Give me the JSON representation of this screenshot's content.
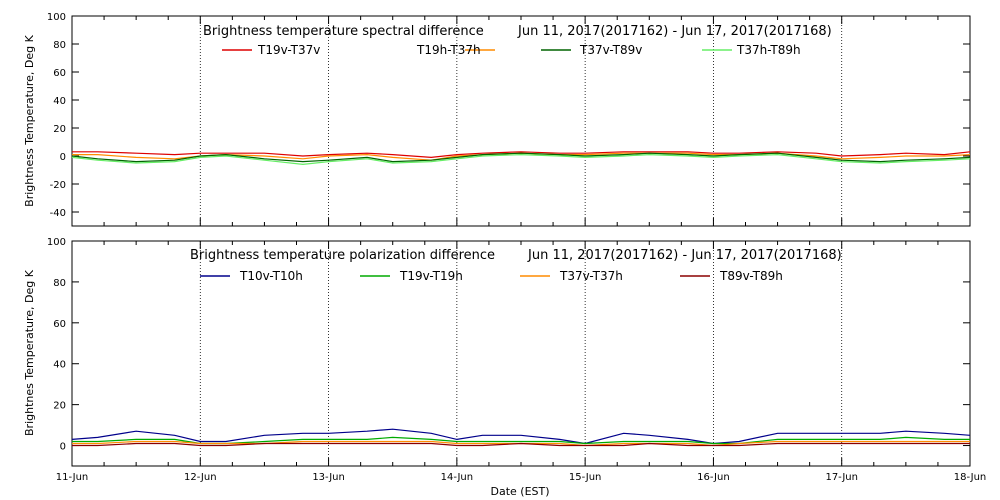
{
  "chart_data": [
    {
      "type": "line",
      "title": "Brightness temperature spectral difference",
      "date_range": "Jun 11, 2017(2017162) - Jun 17, 2017(2017168)",
      "ylabel": "Brightness Temperature, Deg K",
      "xlabel": "",
      "xlim": [
        0,
        7
      ],
      "ylim": [
        -50,
        100
      ],
      "yticks": [
        "-40",
        "-20",
        "0",
        "20",
        "40",
        "60",
        "80",
        "100"
      ],
      "grid": "vertical dotted at day boundaries",
      "legend_position": "top",
      "series": [
        {
          "name": "T19v-T37v",
          "color": "#dd0000",
          "x": [
            0,
            0.2,
            0.5,
            0.8,
            1.0,
            1.2,
            1.5,
            1.8,
            2.0,
            2.3,
            2.5,
            2.8,
            3.0,
            3.2,
            3.5,
            3.8,
            4.0,
            4.3,
            4.5,
            4.8,
            5.0,
            5.2,
            5.5,
            5.8,
            6.0,
            6.3,
            6.5,
            6.8,
            7.0
          ],
          "values": [
            3,
            3,
            2,
            1,
            2,
            2,
            2,
            0,
            1,
            2,
            1,
            -1,
            1,
            2,
            3,
            2,
            2,
            3,
            3,
            3,
            2,
            2,
            3,
            2,
            0,
            1,
            2,
            1,
            3
          ]
        },
        {
          "name": "T19h-T37h",
          "color": "#ff8c00",
          "x": [
            0,
            0.2,
            0.5,
            0.8,
            1.0,
            1.2,
            1.5,
            1.8,
            2.0,
            2.3,
            2.5,
            2.8,
            3.0,
            3.2,
            3.5,
            3.8,
            4.0,
            4.3,
            4.5,
            4.8,
            5.0,
            5.2,
            5.5,
            5.8,
            6.0,
            6.3,
            6.5,
            6.8,
            7.0
          ],
          "values": [
            1,
            1,
            -1,
            -2,
            0,
            1,
            0,
            -2,
            0,
            1,
            -1,
            -3,
            0,
            1,
            2,
            1,
            1,
            2,
            2,
            2,
            1,
            1,
            2,
            0,
            -2,
            -1,
            0,
            0,
            1
          ]
        },
        {
          "name": "T37v-T89v",
          "color": "#006400",
          "x": [
            0,
            0.2,
            0.5,
            0.8,
            1.0,
            1.2,
            1.5,
            1.8,
            2.0,
            2.3,
            2.5,
            2.8,
            3.0,
            3.2,
            3.5,
            3.8,
            4.0,
            4.3,
            4.5,
            4.8,
            5.0,
            5.2,
            5.5,
            5.8,
            6.0,
            6.3,
            6.5,
            6.8,
            7.0
          ],
          "values": [
            0,
            -2,
            -4,
            -3,
            0,
            1,
            -2,
            -4,
            -3,
            -1,
            -4,
            -3,
            -1,
            1,
            2,
            1,
            0,
            1,
            2,
            1,
            0,
            1,
            2,
            -1,
            -3,
            -4,
            -3,
            -2,
            -1
          ]
        },
        {
          "name": "T37h-T89h",
          "color": "#66ee66",
          "x": [
            0,
            0.2,
            0.5,
            0.8,
            1.0,
            1.2,
            1.5,
            1.8,
            2.0,
            2.3,
            2.5,
            2.8,
            3.0,
            3.2,
            3.5,
            3.8,
            4.0,
            4.3,
            4.5,
            4.8,
            5.0,
            5.2,
            5.5,
            5.8,
            6.0,
            6.3,
            6.5,
            6.8,
            7.0
          ],
          "values": [
            -1,
            -3,
            -5,
            -4,
            -1,
            0,
            -3,
            -6,
            -4,
            -2,
            -5,
            -4,
            -2,
            0,
            1,
            0,
            -1,
            0,
            1,
            0,
            -1,
            0,
            1,
            -2,
            -4,
            -5,
            -4,
            -3,
            -2
          ]
        }
      ]
    },
    {
      "type": "line",
      "title": "Brightness temperature polarization difference",
      "date_range": "Jun 11, 2017(2017162) - Jun 17, 2017(2017168)",
      "ylabel": "Brightnes Temperature, Deg K",
      "xlabel": "Date (EST)",
      "xlim": [
        0,
        7
      ],
      "ylim": [
        -10,
        100
      ],
      "yticks": [
        "0",
        "20",
        "40",
        "60",
        "80",
        "100"
      ],
      "categories": [
        "11-Jun",
        "12-Jun",
        "13-Jun",
        "14-Jun",
        "15-Jun",
        "16-Jun",
        "17-Jun",
        "18-Jun"
      ],
      "grid": "vertical dotted at day boundaries",
      "legend_position": "top",
      "series": [
        {
          "name": "T10v-T10h",
          "color": "#00008b",
          "x": [
            0,
            0.2,
            0.5,
            0.8,
            1.0,
            1.2,
            1.5,
            1.8,
            2.0,
            2.3,
            2.5,
            2.8,
            3.0,
            3.2,
            3.5,
            3.8,
            4.0,
            4.3,
            4.5,
            4.8,
            5.0,
            5.2,
            5.5,
            5.8,
            6.0,
            6.3,
            6.5,
            6.8,
            7.0
          ],
          "values": [
            3,
            4,
            7,
            5,
            2,
            2,
            5,
            6,
            6,
            7,
            8,
            6,
            3,
            5,
            5,
            3,
            1,
            6,
            5,
            3,
            1,
            2,
            6,
            6,
            6,
            6,
            7,
            6,
            5
          ]
        },
        {
          "name": "T19v-T19h",
          "color": "#00aa00",
          "x": [
            0,
            0.2,
            0.5,
            0.8,
            1.0,
            1.2,
            1.5,
            1.8,
            2.0,
            2.3,
            2.5,
            2.8,
            3.0,
            3.2,
            3.5,
            3.8,
            4.0,
            4.3,
            4.5,
            4.8,
            5.0,
            5.2,
            5.5,
            5.8,
            6.0,
            6.3,
            6.5,
            6.8,
            7.0
          ],
          "values": [
            2,
            2,
            3,
            3,
            1,
            1,
            2,
            3,
            3,
            3,
            4,
            3,
            2,
            2,
            2,
            2,
            1,
            2,
            2,
            2,
            1,
            1,
            3,
            3,
            3,
            3,
            4,
            3,
            3
          ]
        },
        {
          "name": "T37v-T37h",
          "color": "#ff8c00",
          "x": [
            0,
            0.2,
            0.5,
            0.8,
            1.0,
            1.2,
            1.5,
            1.8,
            2.0,
            2.3,
            2.5,
            2.8,
            3.0,
            3.2,
            3.5,
            3.8,
            4.0,
            4.3,
            4.5,
            4.8,
            5.0,
            5.2,
            5.5,
            5.8,
            6.0,
            6.3,
            6.5,
            6.8,
            7.0
          ],
          "values": [
            1,
            1,
            2,
            2,
            1,
            1,
            1,
            2,
            2,
            2,
            2,
            2,
            1,
            1,
            1,
            1,
            0,
            1,
            1,
            1,
            0,
            1,
            2,
            2,
            2,
            2,
            2,
            2,
            2
          ]
        },
        {
          "name": "T89v-T89h",
          "color": "#8b0000",
          "x": [
            0,
            0.2,
            0.5,
            0.8,
            1.0,
            1.2,
            1.5,
            1.8,
            2.0,
            2.3,
            2.5,
            2.8,
            3.0,
            3.2,
            3.5,
            3.8,
            4.0,
            4.3,
            4.5,
            4.8,
            5.0,
            5.2,
            5.5,
            5.8,
            6.0,
            6.3,
            6.5,
            6.8,
            7.0
          ],
          "values": [
            0,
            0,
            1,
            1,
            0,
            0,
            1,
            1,
            1,
            1,
            1,
            1,
            0,
            0,
            1,
            0,
            0,
            0,
            1,
            0,
            0,
            0,
            1,
            1,
            1,
            1,
            1,
            1,
            1
          ]
        }
      ]
    }
  ]
}
